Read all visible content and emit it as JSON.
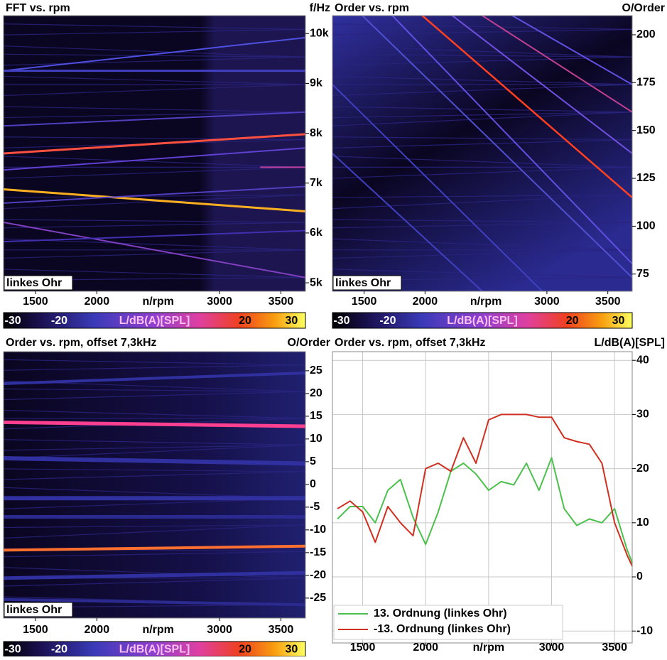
{
  "chart_data": [
    {
      "type": "spectrogram",
      "title": "FFT vs. rpm",
      "y_label": "f/Hz",
      "x_label": "n/rpm",
      "annotation": "linkes Ohr",
      "xlim": [
        1240,
        3700
      ],
      "xticks": [
        1500,
        2000,
        3000,
        3500
      ],
      "ylim": [
        4830,
        10360
      ],
      "yticks": [
        {
          "value": 5000,
          "label": "5k"
        },
        {
          "value": 6000,
          "label": "6k"
        },
        {
          "value": 7000,
          "label": "7k"
        },
        {
          "value": 8000,
          "label": "8k"
        },
        {
          "value": 9000,
          "label": "9k"
        },
        {
          "value": 10000,
          "label": "10k"
        }
      ],
      "colorbar": {
        "label": "L/dB(A)[SPL]",
        "lim": [
          -32,
          33
        ],
        "ticks": [
          -30,
          -20,
          20,
          30
        ]
      }
    },
    {
      "type": "spectrogram",
      "title": "Order vs. rpm",
      "y_label": "O/Order",
      "x_label": "n/rpm",
      "annotation": "linkes Ohr",
      "xlim": [
        1240,
        3700
      ],
      "xticks": [
        1500,
        2000,
        3000,
        3500
      ],
      "ylim": [
        66,
        210
      ],
      "yticks": [
        75,
        100,
        125,
        150,
        175,
        200
      ],
      "colorbar": {
        "label": "L/dB(A)[SPL]",
        "lim": [
          -32,
          33
        ],
        "ticks": [
          -30,
          -20,
          20,
          30
        ]
      }
    },
    {
      "type": "spectrogram",
      "title": "Order vs. rpm, offset 7,3kHz",
      "y_label": "O/Order",
      "x_label": "n/rpm",
      "annotation": "linkes Ohr",
      "xlim": [
        1240,
        3700
      ],
      "xticks": [
        1500,
        2000,
        3000,
        3500
      ],
      "ylim": [
        -29.4,
        29.2
      ],
      "yticks": [
        -25,
        -20,
        -15,
        -10,
        -5,
        0,
        5,
        10,
        15,
        20,
        25
      ],
      "colorbar": {
        "label": "L/dB(A)[SPL]",
        "lim": [
          -32,
          33
        ],
        "ticks": [
          -30,
          -20,
          20,
          30
        ]
      }
    },
    {
      "type": "line",
      "title": "Order vs. rpm, offset 7,3kHz",
      "y_label": "L/dB(A)[SPL]",
      "x_label": "n/rpm",
      "grid": true,
      "xlim": [
        1260,
        3640
      ],
      "xticks": [
        1500,
        2000,
        3000,
        3500
      ],
      "grid_x": [
        1500,
        2000,
        2500,
        3000,
        3500
      ],
      "ylim": [
        -12.2,
        41.6
      ],
      "yticks": [
        -10,
        0,
        10,
        20,
        30,
        40
      ],
      "x": [
        1300,
        1400,
        1500,
        1600,
        1700,
        1800,
        1900,
        2000,
        2100,
        2200,
        2300,
        2400,
        2500,
        2600,
        2700,
        2800,
        2900,
        3000,
        3100,
        3200,
        3300,
        3400,
        3500,
        3600,
        3640
      ],
      "series": [
        {
          "name": "13. Ordnung (linkes Ohr)",
          "color": "#4cc04c",
          "values": [
            10.7,
            13,
            13,
            10,
            16,
            18,
            11,
            6,
            12,
            19.5,
            21,
            19,
            16,
            17.6,
            17,
            21,
            16,
            22,
            12.6,
            9.5,
            10.7,
            10,
            12.6,
            5,
            2.6
          ]
        },
        {
          "name": "-13. Ordnung (linkes Ohr)",
          "color": "#d03020",
          "values": [
            12.6,
            14,
            12,
            6.4,
            13,
            10,
            7.6,
            20,
            21,
            19.5,
            25.7,
            21,
            29,
            30,
            30,
            30,
            29.5,
            29.5,
            25.7,
            25,
            24.5,
            21,
            10,
            4,
            2
          ]
        }
      ]
    }
  ]
}
